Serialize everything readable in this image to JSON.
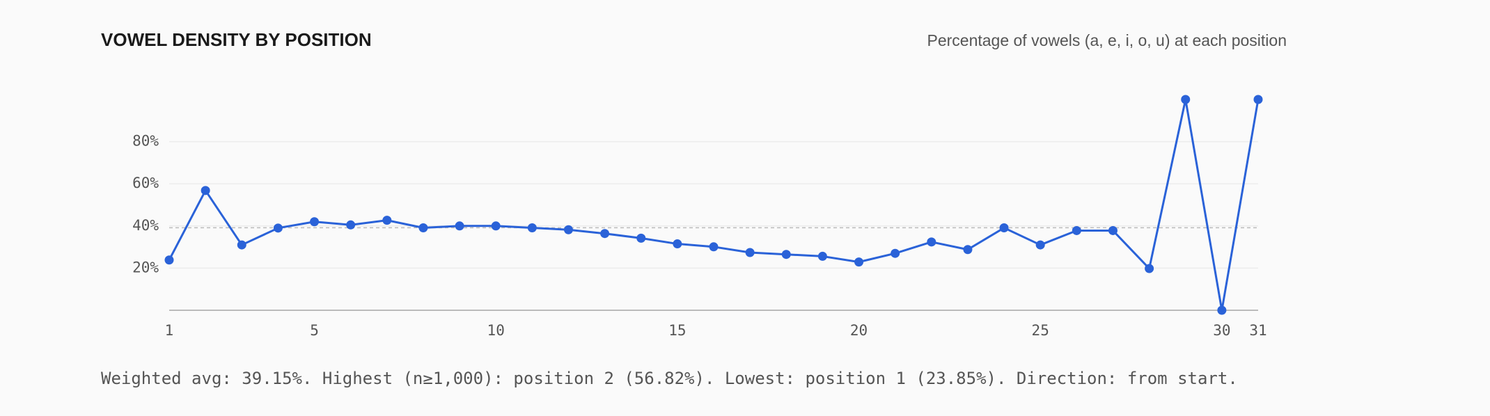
{
  "chart_data": {
    "type": "line",
    "title": "VOWEL DENSITY BY POSITION",
    "subtitle": "Percentage of vowels (a, e, i, o, u) at each position",
    "x": [
      1,
      2,
      3,
      4,
      5,
      6,
      7,
      8,
      9,
      10,
      11,
      12,
      13,
      14,
      15,
      16,
      17,
      18,
      19,
      20,
      21,
      22,
      23,
      24,
      25,
      26,
      27,
      28,
      29,
      30,
      31
    ],
    "series": [
      {
        "name": "Vowel density",
        "color": "#2a62d8",
        "values": [
          23.85,
          56.82,
          31,
          39,
          42,
          40.5,
          42.7,
          39.1,
          40,
          40,
          39.1,
          38.2,
          36.4,
          34.2,
          31.5,
          30.1,
          27.4,
          26.5,
          25.6,
          22.9,
          27,
          32.4,
          28.8,
          39.1,
          31,
          37.8,
          37.8,
          19.8,
          100,
          0,
          100
        ]
      }
    ],
    "reference_line": 39.15,
    "xlim": [
      1,
      31
    ],
    "xticks": [
      1,
      5,
      10,
      15,
      20,
      25,
      30,
      31
    ],
    "ylim": [
      0,
      100
    ],
    "yticks": [
      {
        "value": 20,
        "label": "20%"
      },
      {
        "value": 40,
        "label": "40%"
      },
      {
        "value": 60,
        "label": "60%"
      },
      {
        "value": 80,
        "label": "80%"
      }
    ],
    "grid": true,
    "footnote": "Weighted avg: 39.15%. Highest (n≥1,000): position 2 (56.82%). Lowest: position 1 (23.85%). Direction: from start."
  }
}
